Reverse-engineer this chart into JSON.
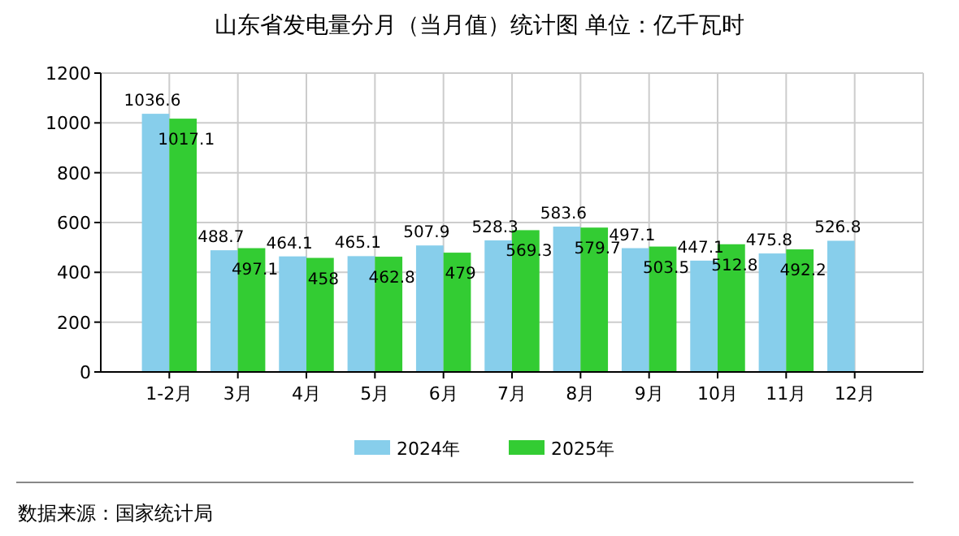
{
  "chart_data": {
    "type": "bar",
    "title": "山东省发电量分月（当月值）统计图 单位：亿千瓦时",
    "categories": [
      "1-2月",
      "3月",
      "4月",
      "5月",
      "6月",
      "7月",
      "8月",
      "9月",
      "10月",
      "11月",
      "12月"
    ],
    "series": [
      {
        "name": "2024年",
        "color": "#87ceeb",
        "values": [
          1036.6,
          488.7,
          464.1,
          465.1,
          507.9,
          528.3,
          583.6,
          497.1,
          447.1,
          475.8,
          526.8
        ]
      },
      {
        "name": "2025年",
        "color": "#33cc33",
        "values": [
          1017.1,
          497.1,
          458,
          462.8,
          479,
          569.3,
          579.7,
          503.5,
          512.8,
          492.2,
          null
        ]
      }
    ],
    "ylim": [
      0,
      1200
    ],
    "yticks": [
      0,
      200,
      400,
      600,
      800,
      1000,
      1200
    ],
    "grid": true,
    "legend": "bottom",
    "data_labels": true,
    "annotations": [
      "数据来源：国家统计局"
    ]
  }
}
